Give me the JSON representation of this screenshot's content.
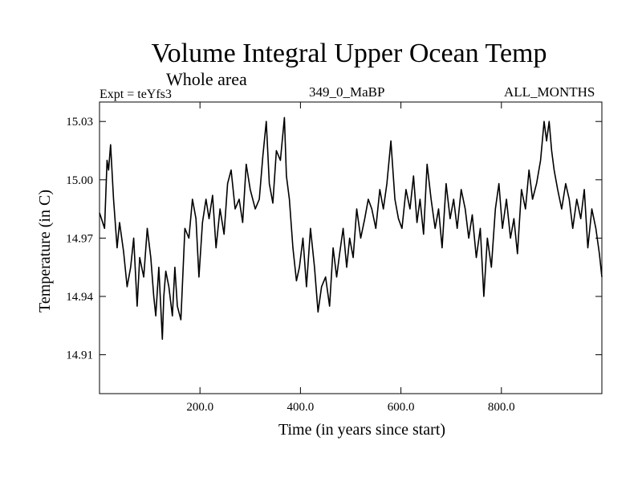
{
  "header": {
    "title": "Volume Integral Upper Ocean Temp",
    "subtitle": "Whole area",
    "experiment": "Expt = teYfs3",
    "run_label": "349_0_MaBP",
    "months": "ALL_MONTHS"
  },
  "chart_data": {
    "type": "line",
    "title": "Volume Integral Upper Ocean Temp",
    "xlabel": "Time (in years since start)",
    "ylabel": "Temperature (in C)",
    "xlim": [
      0,
      1000
    ],
    "ylim": [
      14.89,
      15.04
    ],
    "x_ticks": [
      200,
      400,
      600,
      800
    ],
    "x_tick_labels": [
      "200.0",
      "400.0",
      "600.0",
      "800.0"
    ],
    "y_ticks": [
      14.91,
      14.94,
      14.97,
      15.0,
      15.03
    ],
    "y_tick_labels": [
      "14.91",
      "14.94",
      "14.97",
      "15.00",
      "15.03"
    ],
    "series": [
      {
        "name": "Volume Integral Upper Ocean Temp",
        "x": [
          0,
          10,
          15,
          18,
          22,
          28,
          35,
          40,
          48,
          55,
          62,
          68,
          75,
          80,
          88,
          95,
          102,
          108,
          112,
          118,
          125,
          128,
          132,
          138,
          145,
          150,
          155,
          162,
          170,
          178,
          185,
          192,
          198,
          205,
          212,
          218,
          225,
          232,
          240,
          248,
          255,
          262,
          270,
          278,
          285,
          292,
          300,
          310,
          318,
          325,
          332,
          338,
          345,
          352,
          360,
          368,
          372,
          378,
          385,
          392,
          398,
          405,
          412,
          420,
          428,
          435,
          442,
          450,
          458,
          465,
          472,
          478,
          485,
          492,
          498,
          505,
          512,
          520,
          528,
          535,
          542,
          550,
          558,
          565,
          572,
          580,
          588,
          595,
          602,
          610,
          618,
          625,
          632,
          638,
          645,
          652,
          660,
          668,
          675,
          682,
          690,
          698,
          705,
          712,
          720,
          728,
          735,
          742,
          750,
          758,
          765,
          772,
          780,
          788,
          795,
          802,
          810,
          818,
          825,
          832,
          840,
          848,
          855,
          862,
          870,
          878,
          885,
          890,
          895,
          900,
          905,
          912,
          920,
          928,
          935,
          942,
          950,
          958,
          965,
          972,
          980,
          988,
          995,
          1000
        ],
        "values": [
          14.983,
          14.975,
          15.01,
          15.005,
          15.018,
          14.99,
          14.965,
          14.978,
          14.963,
          14.945,
          14.955,
          14.97,
          14.935,
          14.96,
          14.95,
          14.975,
          14.96,
          14.94,
          14.93,
          14.955,
          14.918,
          14.94,
          14.953,
          14.945,
          14.93,
          14.955,
          14.935,
          14.928,
          14.975,
          14.97,
          14.99,
          14.98,
          14.95,
          14.978,
          14.99,
          14.98,
          14.992,
          14.965,
          14.985,
          14.972,
          14.998,
          15.005,
          14.985,
          14.99,
          14.978,
          15.008,
          14.995,
          14.985,
          14.99,
          15.012,
          15.03,
          14.998,
          14.988,
          15.015,
          15.01,
          15.032,
          15.002,
          14.99,
          14.965,
          14.948,
          14.955,
          14.97,
          14.945,
          14.975,
          14.955,
          14.932,
          14.945,
          14.95,
          14.935,
          14.965,
          14.95,
          14.962,
          14.975,
          14.955,
          14.97,
          14.96,
          14.985,
          14.97,
          14.98,
          14.99,
          14.985,
          14.975,
          14.995,
          14.985,
          14.998,
          15.02,
          14.99,
          14.98,
          14.975,
          14.995,
          14.985,
          15.002,
          14.978,
          14.99,
          14.972,
          15.008,
          14.99,
          14.975,
          14.985,
          14.965,
          14.998,
          14.98,
          14.99,
          14.975,
          14.995,
          14.985,
          14.97,
          14.982,
          14.96,
          14.975,
          14.94,
          14.97,
          14.955,
          14.985,
          14.998,
          14.975,
          14.99,
          14.97,
          14.98,
          14.962,
          14.995,
          14.985,
          15.005,
          14.99,
          14.998,
          15.01,
          15.03,
          15.02,
          15.03,
          15.015,
          15.005,
          14.995,
          14.985,
          14.998,
          14.99,
          14.975,
          14.99,
          14.98,
          14.995,
          14.965,
          14.985,
          14.975,
          14.962,
          14.95
        ]
      }
    ]
  }
}
